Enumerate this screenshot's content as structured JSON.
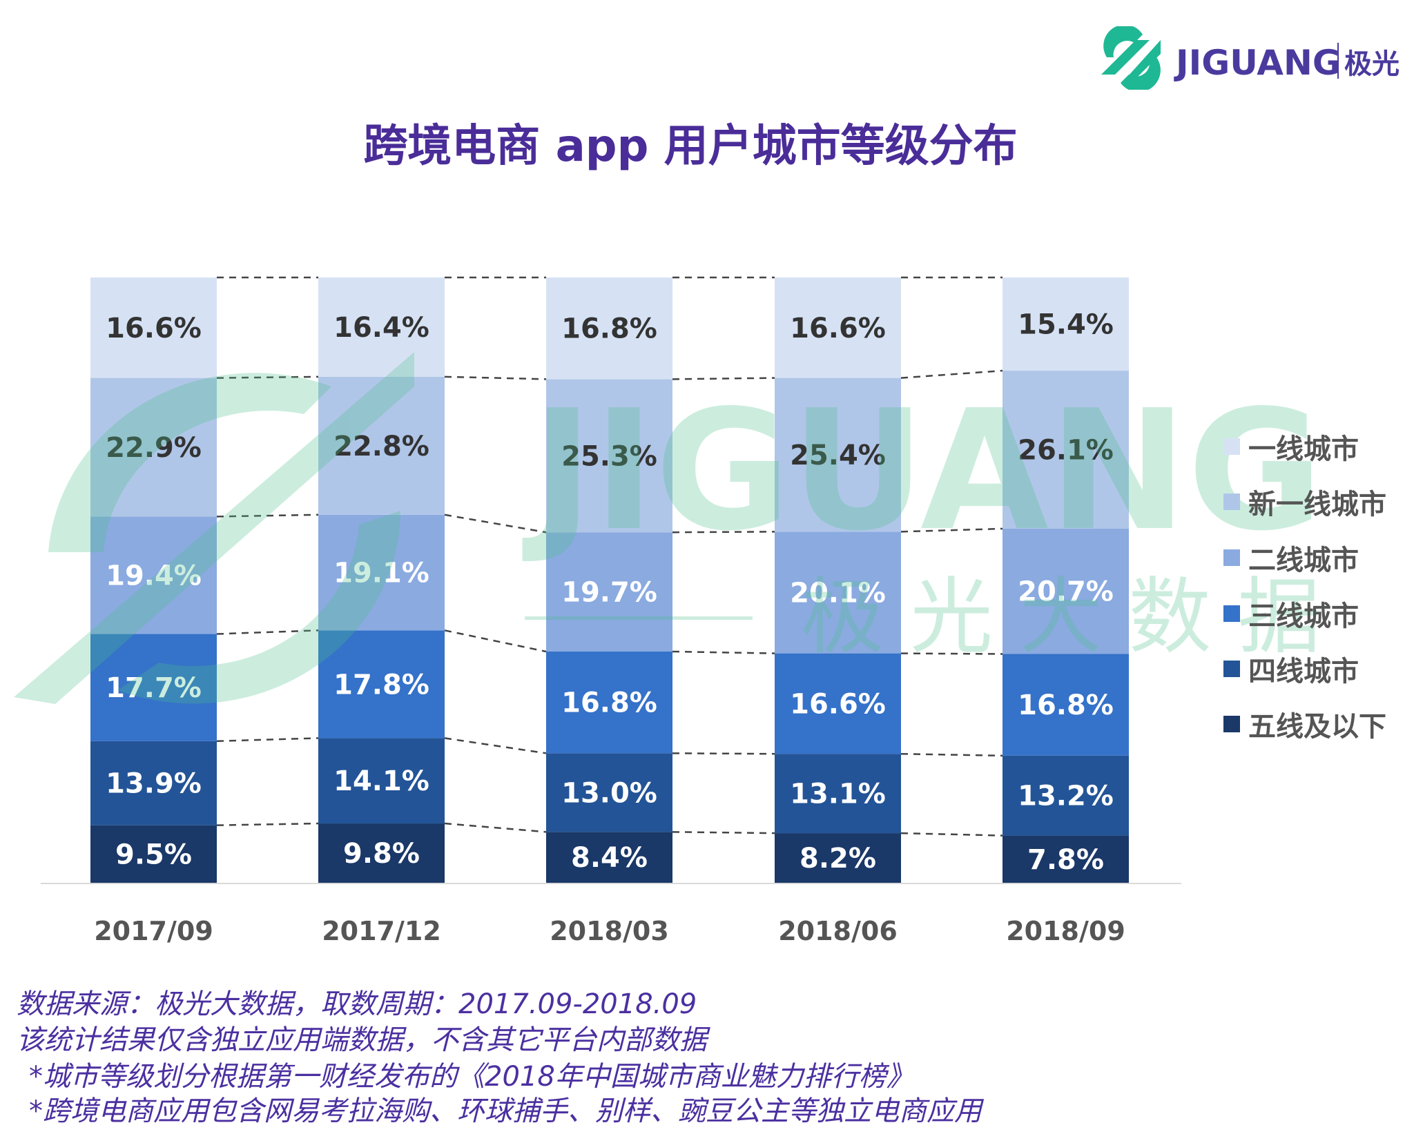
{
  "title": "跨境电商 app 用户城市等级分布",
  "logo": {
    "text": "JIGUANG",
    "cn": "极光",
    "green": "#1fb894",
    "purple": "#4a3a9e"
  },
  "watermark": {
    "text": "JIGUANG",
    "cn": "极 光 大 数 据"
  },
  "chart_data": {
    "type": "bar",
    "stacked": true,
    "categories": [
      "2017/09",
      "2017/12",
      "2018/03",
      "2018/06",
      "2018/09"
    ],
    "series": [
      {
        "name": "五线及以下",
        "color": "#1a3868",
        "values": [
          9.5,
          9.8,
          8.4,
          8.2,
          7.8
        ]
      },
      {
        "name": "四线城市",
        "color": "#235497",
        "values": [
          13.9,
          14.1,
          13.0,
          13.1,
          13.2
        ]
      },
      {
        "name": "三线城市",
        "color": "#3572c9",
        "values": [
          17.7,
          17.8,
          16.8,
          16.6,
          16.8
        ]
      },
      {
        "name": "二线城市",
        "color": "#8aaae0",
        "values": [
          19.4,
          19.1,
          19.7,
          20.1,
          20.7
        ]
      },
      {
        "name": "新一线城市",
        "color": "#b0c6e8",
        "values": [
          22.9,
          22.8,
          25.3,
          25.4,
          26.1
        ]
      },
      {
        "name": "一线城市",
        "color": "#d6e2f4",
        "values": [
          16.6,
          16.4,
          16.8,
          16.6,
          15.4
        ]
      }
    ],
    "value_format": "%",
    "ylim": [
      0,
      100
    ],
    "legend_position": "right",
    "grid": false,
    "connectors": "dashed"
  },
  "legend": [
    "一线城市",
    "新一线城市",
    "二线城市",
    "三线城市",
    "四线城市",
    "五线及以下"
  ],
  "footer": [
    "数据来源：极光大数据，取数周期：2017.09-2018.09",
    "该统计结果仅含独立应用端数据，不含其它平台内部数据",
    "*城市等级划分根据第一财经发布的《2018年中国城市商业魅力排行榜》",
    "*跨境电商应用包含网易考拉海购、环球捕手、别样、豌豆公主等独立电商应用"
  ]
}
